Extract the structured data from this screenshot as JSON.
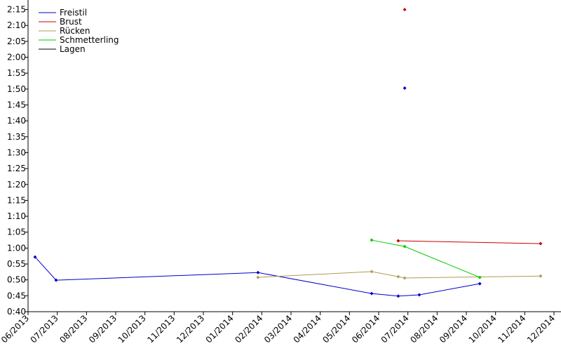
{
  "chart_data": {
    "type": "line",
    "xlim": [
      0,
      18.24
    ],
    "xticks": [
      {
        "value": 0,
        "label": "06/2013"
      },
      {
        "value": 1,
        "label": "07/2013"
      },
      {
        "value": 2,
        "label": "08/2013"
      },
      {
        "value": 3,
        "label": "09/2013"
      },
      {
        "value": 4,
        "label": "10/2013"
      },
      {
        "value": 5,
        "label": "11/2013"
      },
      {
        "value": 6,
        "label": "12/2013"
      },
      {
        "value": 7,
        "label": "01/2014"
      },
      {
        "value": 8,
        "label": "02/2014"
      },
      {
        "value": 9,
        "label": "03/2014"
      },
      {
        "value": 10,
        "label": "04/2014"
      },
      {
        "value": 11,
        "label": "05/2014"
      },
      {
        "value": 12,
        "label": "06/2014"
      },
      {
        "value": 13,
        "label": "07/2014"
      },
      {
        "value": 14,
        "label": "08/2014"
      },
      {
        "value": 15,
        "label": "09/2014"
      },
      {
        "value": 16,
        "label": "10/2014"
      },
      {
        "value": 17,
        "label": "11/2014"
      },
      {
        "value": 18,
        "label": "12/2014"
      }
    ],
    "ylim": [
      40,
      138
    ],
    "yticks": [
      {
        "value": 40,
        "label": "0:40"
      },
      {
        "value": 45,
        "label": "0:45"
      },
      {
        "value": 50,
        "label": "0:50"
      },
      {
        "value": 55,
        "label": "0:55"
      },
      {
        "value": 60,
        "label": "1:00"
      },
      {
        "value": 65,
        "label": "1:05"
      },
      {
        "value": 70,
        "label": "1:10"
      },
      {
        "value": 75,
        "label": "1:15"
      },
      {
        "value": 80,
        "label": "1:20"
      },
      {
        "value": 85,
        "label": "1:25"
      },
      {
        "value": 90,
        "label": "1:30"
      },
      {
        "value": 95,
        "label": "1:35"
      },
      {
        "value": 100,
        "label": "1:40"
      },
      {
        "value": 105,
        "label": "1:45"
      },
      {
        "value": 110,
        "label": "1:50"
      },
      {
        "value": 115,
        "label": "1:55"
      },
      {
        "value": 120,
        "label": "2:00"
      },
      {
        "value": 125,
        "label": "2:05"
      },
      {
        "value": 130,
        "label": "2:10"
      },
      {
        "value": 135,
        "label": "2:15"
      }
    ],
    "legend": "upper left",
    "series": [
      {
        "name": "Freistil",
        "color": "#0000cc",
        "x": [
          0.24,
          0.96,
          7.87,
          11.76,
          12.67,
          13.39,
          15.46,
          null,
          12.89
        ],
        "values": [
          57.2,
          49.9,
          52.3,
          45.7,
          44.9,
          45.3,
          48.8,
          null,
          110.3
        ]
      },
      {
        "name": "Brust",
        "color": "#cc0000",
        "x": [
          12.67,
          17.54,
          null,
          12.89
        ],
        "values": [
          62.3,
          61.4,
          null,
          135
        ]
      },
      {
        "name": "Rücken",
        "color": "#b09a55",
        "x": [
          7.87,
          11.76,
          12.67,
          12.89,
          17.54
        ],
        "values": [
          50.8,
          52.6,
          51.0,
          50.6,
          51.2
        ]
      },
      {
        "name": "Schmetterling",
        "color": "#00cc00",
        "x": [
          11.76,
          12.89,
          15.46
        ],
        "values": [
          62.5,
          60.5,
          50.8
        ]
      },
      {
        "name": "Lagen",
        "color": "#000000",
        "x": [],
        "values": []
      }
    ]
  }
}
